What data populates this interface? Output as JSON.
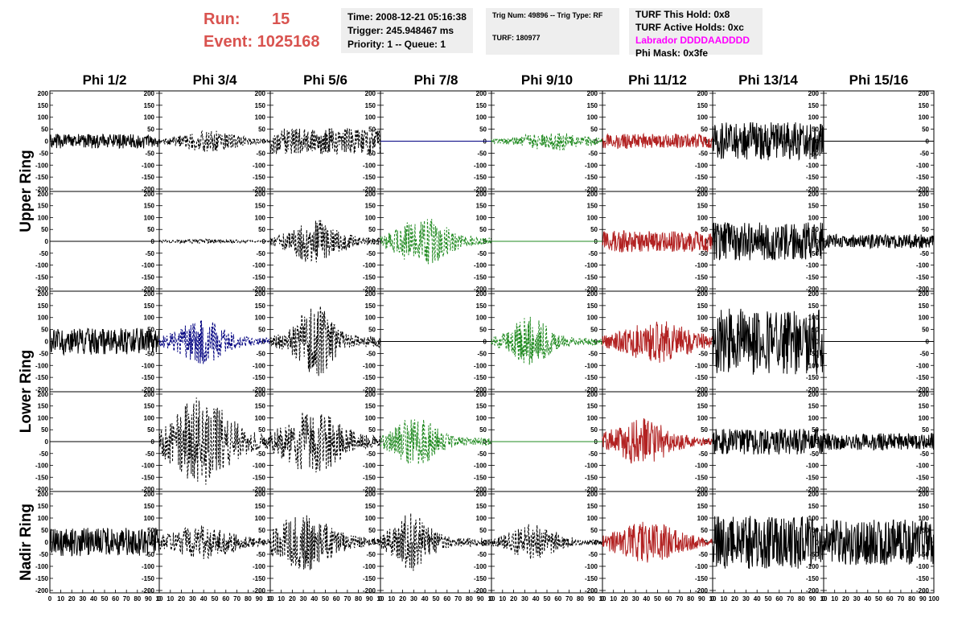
{
  "header": {
    "run_label": "Run:",
    "run_value": "15",
    "event_label": "Event:",
    "event_value": "1025168",
    "time": "Time: 2008-12-21 05:16:38",
    "trigger": "Trigger: 245.948467 ms",
    "priority": "Priority: 1 -- Queue: 1",
    "trig_num": "Trig Num: 49896 -- Trig Type: RF",
    "turf": "TURF: 180977",
    "turf_hold": "TURF This Hold: 0x8",
    "turf_active": "TURF Active Holds: 0xc",
    "labrador": "Labrador DDDDAADDDD",
    "phi_mask": "Phi Mask: 0x3fe",
    "labrador_color": "#ff00ff",
    "run_color": "#d9534f"
  },
  "chart_data": {
    "type": "line",
    "columns": [
      "Phi 1/2",
      "Phi 3/4",
      "Phi 5/6",
      "Phi 7/8",
      "Phi 9/10",
      "Phi 11/12",
      "Phi 13/14",
      "Phi 15/16"
    ],
    "row_labels": [
      "Upper Ring",
      "Lower Ring",
      "Nadir Ring"
    ],
    "rows": 5,
    "xlim": [
      0,
      100
    ],
    "ylim": [
      -210,
      210
    ],
    "x_ticks": [
      0,
      10,
      20,
      30,
      40,
      50,
      60,
      70,
      80,
      90,
      100
    ],
    "x_tick_labels_last": [
      "0",
      "10",
      "20",
      "30",
      "40",
      "50",
      "60",
      "70",
      "80",
      "90",
      "100"
    ],
    "x_tick_labels_other": [
      "0",
      "10",
      "20",
      "30",
      "40",
      "50",
      "60",
      "70",
      "80",
      "90",
      "10"
    ],
    "y_ticks": [
      200,
      150,
      100,
      50,
      0,
      -50,
      -100,
      -150,
      -200
    ],
    "y_tick_labels": [
      "200",
      "150",
      "100",
      "50",
      "0",
      "-50",
      "-100",
      "-150",
      "-200"
    ],
    "panels": [
      [
        {
          "color": "#000000",
          "style": "solid",
          "amp": 30,
          "center": 50,
          "width": 0,
          "seed": 1
        },
        {
          "color": "#000000",
          "style": "dashed",
          "amp": 45,
          "center": 45,
          "width": 30,
          "seed": 2
        },
        {
          "color": "#000000",
          "style": "dashed",
          "amp": 55,
          "center": 50,
          "width": 0,
          "seed": 3
        },
        {
          "color": "#000080",
          "style": "flat",
          "amp": 0,
          "center": 50,
          "width": 0,
          "seed": 4
        },
        {
          "color": "#228b22",
          "style": "dashed",
          "amp": 40,
          "center": 55,
          "width": 35,
          "seed": 5
        },
        {
          "color": "#b22222",
          "style": "solid",
          "amp": 30,
          "center": 50,
          "width": 0,
          "seed": 6
        },
        {
          "color": "#000000",
          "style": "solid",
          "amp": 80,
          "center": 50,
          "width": 0,
          "seed": 7
        },
        {
          "color": "#000000",
          "style": "flat",
          "amp": 0,
          "center": 50,
          "width": 0,
          "seed": 8
        }
      ],
      [
        {
          "color": "#000000",
          "style": "flat",
          "amp": 0,
          "center": 50,
          "width": 0,
          "seed": 9
        },
        {
          "color": "#000000",
          "style": "dashed",
          "amp": 10,
          "center": 40,
          "width": 40,
          "seed": 10
        },
        {
          "color": "#000000",
          "style": "dashed",
          "amp": 95,
          "center": 40,
          "width": 25,
          "seed": 11
        },
        {
          "color": "#228b22",
          "style": "dashed",
          "amp": 110,
          "center": 38,
          "width": 25,
          "seed": 12
        },
        {
          "color": "#228b22",
          "style": "flat",
          "amp": 0,
          "center": 50,
          "width": 0,
          "seed": 13
        },
        {
          "color": "#b22222",
          "style": "solid",
          "amp": 45,
          "center": 50,
          "width": 0,
          "seed": 14
        },
        {
          "color": "#000000",
          "style": "solid",
          "amp": 80,
          "center": 50,
          "width": 0,
          "seed": 15
        },
        {
          "color": "#000000",
          "style": "solid",
          "amp": 30,
          "center": 50,
          "width": 0,
          "seed": 16
        }
      ],
      [
        {
          "color": "#000000",
          "style": "solid",
          "amp": 55,
          "center": 45,
          "width": 0,
          "seed": 17
        },
        {
          "color": "#000080",
          "style": "dashed",
          "amp": 95,
          "center": 38,
          "width": 25,
          "seed": 18
        },
        {
          "color": "#000000",
          "style": "dashed",
          "amp": 160,
          "center": 40,
          "width": 18,
          "seed": 19
        },
        {
          "color": "#000000",
          "style": "flat",
          "amp": 0,
          "center": 50,
          "width": 0,
          "seed": 20
        },
        {
          "color": "#228b22",
          "style": "dashed",
          "amp": 105,
          "center": 35,
          "width": 20,
          "seed": 21
        },
        {
          "color": "#b22222",
          "style": "solid",
          "amp": 90,
          "center": 50,
          "width": 35,
          "seed": 22
        },
        {
          "color": "#000000",
          "style": "solid",
          "amp": 140,
          "center": 50,
          "width": 0,
          "seed": 23
        },
        {
          "color": "#000000",
          "style": "flat",
          "amp": 0,
          "center": 50,
          "width": 0,
          "seed": 24
        }
      ],
      [
        {
          "color": "#000000",
          "style": "flat",
          "amp": 0,
          "center": 50,
          "width": 0,
          "seed": 25
        },
        {
          "color": "#000000",
          "style": "dashed",
          "amp": 190,
          "center": 38,
          "width": 30,
          "seed": 26
        },
        {
          "color": "#000000",
          "style": "dashed",
          "amp": 140,
          "center": 38,
          "width": 30,
          "seed": 27
        },
        {
          "color": "#228b22",
          "style": "dashed",
          "amp": 110,
          "center": 32,
          "width": 22,
          "seed": 28
        },
        {
          "color": "#228b22",
          "style": "flat",
          "amp": 0,
          "center": 50,
          "width": 0,
          "seed": 29
        },
        {
          "color": "#b22222",
          "style": "solid",
          "amp": 100,
          "center": 35,
          "width": 30,
          "seed": 30
        },
        {
          "color": "#000000",
          "style": "solid",
          "amp": 55,
          "center": 50,
          "width": 0,
          "seed": 31
        },
        {
          "color": "#000000",
          "style": "solid",
          "amp": 35,
          "center": 50,
          "width": 0,
          "seed": 32
        }
      ],
      [
        {
          "color": "#000000",
          "style": "solid",
          "amp": 60,
          "center": 50,
          "width": 0,
          "seed": 33
        },
        {
          "color": "#000000",
          "style": "dashed",
          "amp": 70,
          "center": 40,
          "width": 35,
          "seed": 34
        },
        {
          "color": "#000000",
          "style": "dashed",
          "amp": 120,
          "center": 30,
          "width": 30,
          "seed": 35
        },
        {
          "color": "#000000",
          "style": "dashed",
          "amp": 120,
          "center": 28,
          "width": 20,
          "seed": 36
        },
        {
          "color": "#000000",
          "style": "dashed",
          "amp": 75,
          "center": 38,
          "width": 25,
          "seed": 37
        },
        {
          "color": "#b22222",
          "style": "solid",
          "amp": 85,
          "center": 40,
          "width": 35,
          "seed": 38
        },
        {
          "color": "#000000",
          "style": "solid",
          "amp": 110,
          "center": 50,
          "width": 0,
          "seed": 39
        },
        {
          "color": "#000000",
          "style": "solid",
          "amp": 95,
          "center": 50,
          "width": 0,
          "seed": 40
        }
      ]
    ]
  }
}
